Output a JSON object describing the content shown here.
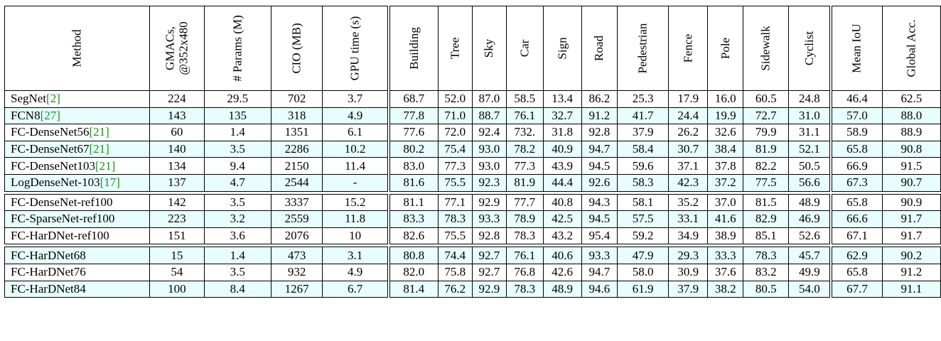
{
  "headers": {
    "method": "Method",
    "gmacs_line1": "GMACs,",
    "gmacs_line2": "@352x480",
    "params": "# Params (M)",
    "cio": "CIO (MB)",
    "gpu": "GPU time (s)",
    "building": "Building",
    "tree": "Tree",
    "sky": "Sky",
    "car": "Car",
    "sign": "Sign",
    "road": "Road",
    "pedestrian": "Pedestrian",
    "fence": "Fence",
    "pole": "Pole",
    "sidewalk": "Sidewalk",
    "cyclist": "Cyclist",
    "mean_iou": "Mean IoU",
    "global_acc": "Global Acc."
  },
  "rows": [
    {
      "name": "SegNet",
      "ref": "[2]",
      "cells": [
        "224",
        "29.5",
        "702",
        "3.7",
        "68.7",
        "52.0",
        "87.0",
        "58.5",
        "13.4",
        "86.2",
        "25.3",
        "17.9",
        "16.0",
        "60.5",
        "24.8",
        "46.4",
        "62.5"
      ]
    },
    {
      "name": "FCN8",
      "ref": "[27]",
      "cells": [
        "143",
        "135",
        "318",
        "4.9",
        "77.8",
        "71.0",
        "88.7",
        "76.1",
        "32.7",
        "91.2",
        "41.7",
        "24.4",
        "19.9",
        "72.7",
        "31.0",
        "57.0",
        "88.0"
      ]
    },
    {
      "name": "FC-DenseNet56",
      "ref": "[21]",
      "cells": [
        "60",
        "1.4",
        "1351",
        "6.1",
        "77.6",
        "72.0",
        "92.4",
        "732.",
        "31.8",
        "92.8",
        "37.9",
        "26.2",
        "32.6",
        "79.9",
        "31.1",
        "58.9",
        "88.9"
      ]
    },
    {
      "name": "FC-DenseNet67",
      "ref": "[21]",
      "cells": [
        "140",
        "3.5",
        "2286",
        "10.2",
        "80.2",
        "75.4",
        "93.0",
        "78.2",
        "40.9",
        "94.7",
        "58.4",
        "30.7",
        "38.4",
        "81.9",
        "52.1",
        "65.8",
        "90.8"
      ]
    },
    {
      "name": "FC-DenseNet103",
      "ref": "[21]",
      "cells": [
        "134",
        "9.4",
        "2150",
        "11.4",
        "83.0",
        "77.3",
        "93.0",
        "77.3",
        "43.9",
        "94.5",
        "59.6",
        "37.1",
        "37.8",
        "82.2",
        "50.5",
        "66.9",
        "91.5"
      ]
    },
    {
      "name": "LogDenseNet-103",
      "ref": "[17]",
      "cells": [
        "137",
        "4.7",
        "2544",
        "-",
        "81.6",
        "75.5",
        "92.3",
        "81.9",
        "44.4",
        "92.6",
        "58.3",
        "42.3",
        "37.2",
        "77.5",
        "56.6",
        "67.3",
        "90.7"
      ]
    },
    {
      "name": "FC-DenseNet-ref100",
      "ref": "",
      "cells": [
        "142",
        "3.5",
        "3337",
        "15.2",
        "81.1",
        "77.1",
        "92.9",
        "77.7",
        "40.8",
        "94.3",
        "58.1",
        "35.2",
        "37.0",
        "81.5",
        "48.9",
        "65.8",
        "90.9"
      ]
    },
    {
      "name": "FC-SparseNet-ref100",
      "ref": "",
      "cells": [
        "223",
        "3.2",
        "2559",
        "11.8",
        "83.3",
        "78.3",
        "93.3",
        "78.9",
        "42.5",
        "94.5",
        "57.5",
        "33.1",
        "41.6",
        "82.9",
        "46.9",
        "66.6",
        "91.7"
      ]
    },
    {
      "name": "FC-HarDNet-ref100",
      "ref": "",
      "cells": [
        "151",
        "3.6",
        "2076",
        "10",
        "82.6",
        "75.5",
        "92.8",
        "78.3",
        "43.2",
        "95.4",
        "59.2",
        "34.9",
        "38.9",
        "85.1",
        "52.6",
        "67.1",
        "91.7"
      ]
    },
    {
      "name": "FC-HarDNet68",
      "ref": "",
      "cells": [
        "15",
        "1.4",
        "473",
        "3.1",
        "80.8",
        "74.4",
        "92.7",
        "76.1",
        "40.6",
        "93.3",
        "47.9",
        "29.3",
        "33.3",
        "78.3",
        "45.7",
        "62.9",
        "90.2"
      ]
    },
    {
      "name": "FC-HarDNet76",
      "ref": "",
      "cells": [
        "54",
        "3.5",
        "932",
        "4.9",
        "82.0",
        "75.8",
        "92.7",
        "76.8",
        "42.6",
        "94.7",
        "58.0",
        "30.9",
        "37.6",
        "83.2",
        "49.9",
        "65.8",
        "91.2"
      ]
    },
    {
      "name": "FC-HarDNet84",
      "ref": "",
      "cells": [
        "100",
        "8.4",
        "1267",
        "6.7",
        "81.4",
        "76.2",
        "92.9",
        "78.3",
        "48.9",
        "94.6",
        "61.9",
        "37.9",
        "38.2",
        "80.5",
        "54.0",
        "67.7",
        "91.1"
      ]
    }
  ],
  "colors": {
    "alt_row": "#e8fdfd",
    "ref_link": "#1f8f1f"
  }
}
